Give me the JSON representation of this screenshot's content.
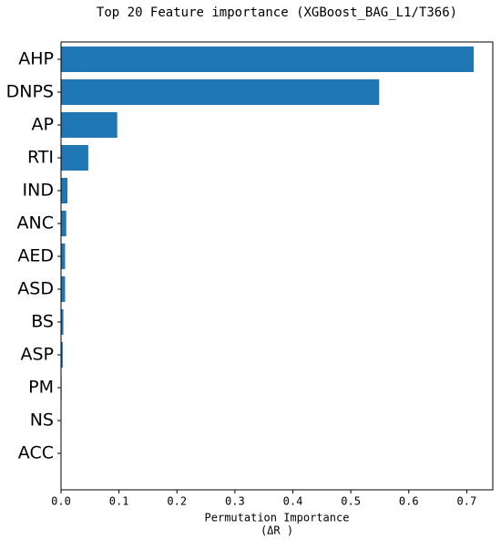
{
  "chart_data": {
    "type": "barh",
    "title": "Top 20 Feature importance (XGBoost_BAG_L1/T366)",
    "xlabel": [
      "Permutation Importance",
      "(ΔR )"
    ],
    "categories": [
      "AHP",
      "DNPS",
      "AP",
      "RTI",
      "IND",
      "ANC",
      "AED",
      "ASD",
      "BS",
      "ASP",
      "PM",
      "NS",
      "ACC"
    ],
    "values": [
      0.712,
      0.549,
      0.097,
      0.047,
      0.011,
      0.009,
      0.007,
      0.007,
      0.004,
      0.003,
      0.001,
      0.0005,
      0.0003
    ],
    "color": "#1f77b4",
    "xlim": [
      0,
      0.745
    ],
    "xticks": [
      {
        "value": 0,
        "label": "0.0"
      },
      0.1,
      0.2,
      0.3,
      0.4,
      0.5,
      0.6,
      0.7
    ],
    "grid": false
  }
}
